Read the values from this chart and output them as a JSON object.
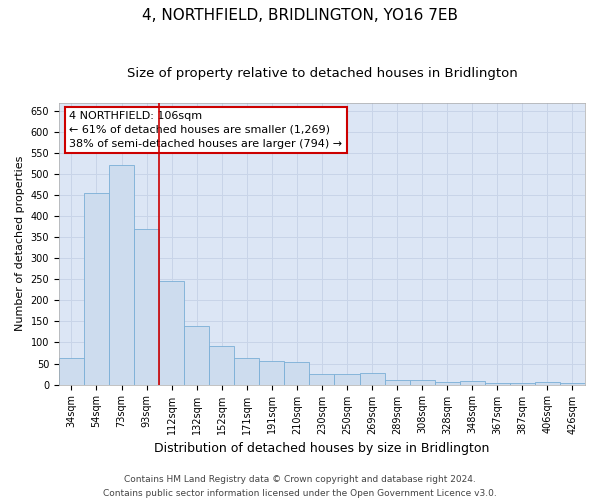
{
  "title": "4, NORTHFIELD, BRIDLINGTON, YO16 7EB",
  "subtitle": "Size of property relative to detached houses in Bridlington",
  "xlabel": "Distribution of detached houses by size in Bridlington",
  "ylabel": "Number of detached properties",
  "categories": [
    "34sqm",
    "54sqm",
    "73sqm",
    "93sqm",
    "112sqm",
    "132sqm",
    "152sqm",
    "171sqm",
    "191sqm",
    "210sqm",
    "230sqm",
    "250sqm",
    "269sqm",
    "289sqm",
    "308sqm",
    "328sqm",
    "348sqm",
    "367sqm",
    "387sqm",
    "406sqm",
    "426sqm"
  ],
  "values": [
    62,
    456,
    521,
    369,
    247,
    139,
    91,
    62,
    55,
    54,
    26,
    26,
    27,
    11,
    12,
    6,
    8,
    4,
    4,
    5,
    4
  ],
  "bar_color": "#cddcee",
  "bar_edge_color": "#7aaed6",
  "vline_color": "#cc0000",
  "vline_index": 4,
  "annotation_text": "4 NORTHFIELD: 106sqm\n← 61% of detached houses are smaller (1,269)\n38% of semi-detached houses are larger (794) →",
  "annotation_box_color": "#ffffff",
  "annotation_box_edge": "#cc0000",
  "ylim": [
    0,
    670
  ],
  "yticks": [
    0,
    50,
    100,
    150,
    200,
    250,
    300,
    350,
    400,
    450,
    500,
    550,
    600,
    650
  ],
  "grid_color": "#c8d4e8",
  "bg_color": "#dce6f5",
  "footer1": "Contains HM Land Registry data © Crown copyright and database right 2024.",
  "footer2": "Contains public sector information licensed under the Open Government Licence v3.0.",
  "title_fontsize": 11,
  "subtitle_fontsize": 9.5,
  "xlabel_fontsize": 9,
  "ylabel_fontsize": 8,
  "tick_fontsize": 7,
  "footer_fontsize": 6.5,
  "annot_fontsize": 8
}
